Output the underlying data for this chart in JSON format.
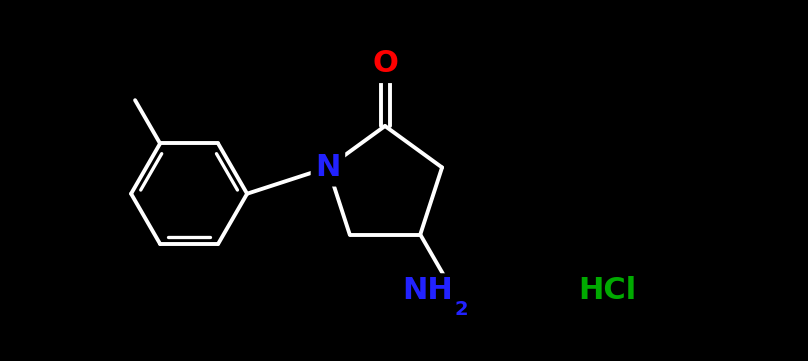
{
  "background_color": "#000000",
  "bond_color": "#ffffff",
  "bond_width": 2.8,
  "O_color": "#ff0000",
  "N_color": "#2222ff",
  "HCl_color": "#00aa00",
  "NH2_color": "#2222ff",
  "figsize": [
    8.08,
    3.61
  ],
  "dpi": 100,
  "font_size": 22,
  "sub_font_size": 14,
  "xlim": [
    0,
    8.08
  ],
  "ylim": [
    0,
    3.61
  ]
}
